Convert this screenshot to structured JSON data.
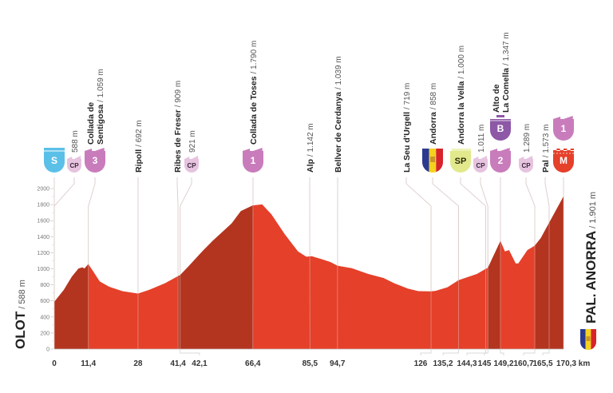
{
  "chart_data": {
    "type": "area",
    "x_unit": "km",
    "xlim": [
      0,
      170.3
    ],
    "ylim": [
      0,
      2000
    ],
    "yticks": [
      0,
      200,
      400,
      600,
      800,
      1000,
      1200,
      1400,
      1600,
      1800,
      2000
    ],
    "xticks": [
      {
        "km": 0,
        "label": "0"
      },
      {
        "km": 11.4,
        "label": "11,4"
      },
      {
        "km": 28,
        "label": "28"
      },
      {
        "km": 41.4,
        "label": "41,4"
      },
      {
        "km": 42.1,
        "label": "42,1"
      },
      {
        "km": 66.4,
        "label": "66,4"
      },
      {
        "km": 85.5,
        "label": "85,5"
      },
      {
        "km": 94.7,
        "label": "94,7"
      },
      {
        "km": 126,
        "label": "126"
      },
      {
        "km": 135.2,
        "label": "135,2"
      },
      {
        "km": 144.3,
        "label": "144,3"
      },
      {
        "km": 145,
        "label": "145"
      },
      {
        "km": 149.2,
        "label": "149,2"
      },
      {
        "km": 160.7,
        "label": "160,7"
      },
      {
        "km": 165.5,
        "label": "165,5"
      },
      {
        "km": 170.3,
        "label": "170,3 km"
      }
    ],
    "profile": [
      [
        0,
        588
      ],
      [
        3.2,
        737
      ],
      [
        5.9,
        903
      ],
      [
        8.1,
        1002
      ],
      [
        9.4,
        1018
      ],
      [
        10.1,
        1002
      ],
      [
        11.4,
        1059
      ],
      [
        13,
        969
      ],
      [
        15.2,
        843
      ],
      [
        18.3,
        777
      ],
      [
        22.8,
        721
      ],
      [
        28,
        692
      ],
      [
        31.7,
        737
      ],
      [
        37,
        820
      ],
      [
        41.4,
        909
      ],
      [
        42.1,
        921
      ],
      [
        45,
        1035
      ],
      [
        49.5,
        1217
      ],
      [
        53,
        1349
      ],
      [
        59.3,
        1564
      ],
      [
        62.4,
        1719
      ],
      [
        66.4,
        1790
      ],
      [
        69.5,
        1802
      ],
      [
        72.6,
        1679
      ],
      [
        77.1,
        1431
      ],
      [
        81.5,
        1217
      ],
      [
        84.3,
        1150
      ],
      [
        86.1,
        1157
      ],
      [
        89.7,
        1117
      ],
      [
        92.4,
        1084
      ],
      [
        94.7,
        1039
      ],
      [
        99.5,
        1008
      ],
      [
        104.9,
        936
      ],
      [
        110.1,
        886
      ],
      [
        113.7,
        820
      ],
      [
        118.2,
        754
      ],
      [
        121.8,
        721
      ],
      [
        126,
        719
      ],
      [
        127.5,
        725
      ],
      [
        131.5,
        770
      ],
      [
        135.2,
        858
      ],
      [
        141.4,
        936
      ],
      [
        144.3,
        1000
      ],
      [
        145,
        1011
      ],
      [
        149.2,
        1347
      ],
      [
        150.7,
        1217
      ],
      [
        152.1,
        1233
      ],
      [
        154.3,
        1068
      ],
      [
        155.2,
        1068
      ],
      [
        158.2,
        1233
      ],
      [
        160.7,
        1289
      ],
      [
        162.7,
        1382
      ],
      [
        165.5,
        1573
      ],
      [
        170.3,
        1901
      ]
    ],
    "climb_segments": [
      [
        0,
        11.4
      ],
      [
        41.4,
        66.4
      ],
      [
        145,
        149.2
      ],
      [
        160.7,
        170.3
      ]
    ],
    "colors": {
      "profile": "#e5402a",
      "climb": "#b3351f",
      "sprint": "#5bc0e8",
      "checkpoint": "#e6c3df",
      "category": "#c97cbb",
      "bonus": "#8d58a6",
      "special_sprint": "#e2e98c",
      "finish": "#e5402a"
    },
    "start": {
      "name": "OLOT",
      "elev": "/ 588 m"
    },
    "finish": {
      "name": "PAL. ANORRA",
      "elev": "/ 1.901 m",
      "flag": "andorra-flag"
    },
    "waypoints": [
      {
        "km": 0,
        "name": [],
        "elev": "",
        "icons": [
          {
            "type": "sprint",
            "label": "S"
          }
        ]
      },
      {
        "km": 0,
        "name": [],
        "elev": "588 m",
        "icons": [
          {
            "type": "checkpoint",
            "label": "CP"
          }
        ]
      },
      {
        "km": 11.4,
        "name": [
          "Collada de",
          "Sentigosa"
        ],
        "elev": "/ 1.059 m",
        "icons": [
          {
            "type": "category",
            "label": "3"
          }
        ]
      },
      {
        "km": 28,
        "name": [
          "Ripoll"
        ],
        "elev": "/ 692 m",
        "icons": []
      },
      {
        "km": 41.4,
        "name": [
          "Ribes de Freser"
        ],
        "elev": "/ 909 m",
        "icons": []
      },
      {
        "km": 42.1,
        "name": [],
        "elev": "921 m",
        "icons": [
          {
            "type": "checkpoint",
            "label": "CP"
          }
        ]
      },
      {
        "km": 66.4,
        "name": [
          "Collada de Toses"
        ],
        "elev": "/ 1.790 m",
        "icons": [
          {
            "type": "category",
            "label": "1"
          }
        ]
      },
      {
        "km": 85.5,
        "name": [
          "Alp"
        ],
        "elev": "/ 1.142 m",
        "icons": []
      },
      {
        "km": 94.7,
        "name": [
          "Bellver de Cerdanya"
        ],
        "elev": "/ 1.039 m",
        "icons": []
      },
      {
        "km": 126,
        "name": [
          "La Seu d'Urgell"
        ],
        "elev": "/ 719 m",
        "icons": []
      },
      {
        "km": 135.2,
        "name": [
          "Andorra"
        ],
        "elev": "/ 858 m",
        "icons": [
          {
            "type": "flag",
            "label": ""
          }
        ]
      },
      {
        "km": 144.3,
        "name": [
          "Andorra la Vella"
        ],
        "elev": "/ 1.000 m",
        "icons": [
          {
            "type": "special_sprint",
            "label": "SP"
          }
        ]
      },
      {
        "km": 145,
        "name": [],
        "elev": "1.011 m",
        "icons": [
          {
            "type": "checkpoint",
            "label": "CP"
          }
        ]
      },
      {
        "km": 149.2,
        "name": [
          "Alto de",
          "La Comella"
        ],
        "elev": "/ 1.347 m",
        "icons": [
          {
            "type": "category",
            "label": "2"
          },
          {
            "type": "bonus",
            "label": "B"
          }
        ]
      },
      {
        "km": 160.7,
        "name": [],
        "elev": "1.289 m",
        "icons": [
          {
            "type": "checkpoint",
            "label": "CP"
          }
        ]
      },
      {
        "km": 165.5,
        "name": [
          "Pal"
        ],
        "elev": "/ 1.573 m",
        "icons": []
      },
      {
        "km": 170.3,
        "name": [],
        "elev": "",
        "icons": [
          {
            "type": "finish",
            "label": "M"
          },
          {
            "type": "category",
            "label": "1"
          }
        ]
      }
    ]
  }
}
